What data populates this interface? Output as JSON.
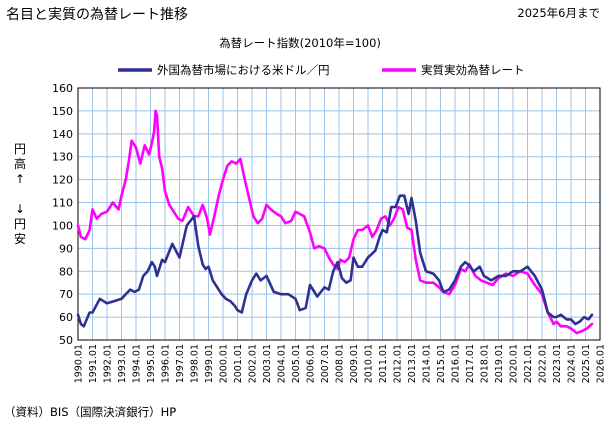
{
  "header": {
    "title": "名目と実質の為替レート推移",
    "date_note": "2025年6月まで"
  },
  "chart_data": {
    "type": "line",
    "title": "為替レート指数(2010年=100)",
    "ylabel_top": "円高↑",
    "ylabel_bottom": "↓円安",
    "ylim": [
      50,
      160
    ],
    "yticks": [
      "50",
      "60",
      "70",
      "80",
      "90",
      "100",
      "110",
      "120",
      "130",
      "140",
      "150",
      "160"
    ],
    "xlim": [
      1990.0,
      2026.0
    ],
    "xticks": [
      "1990.01",
      "1991.01",
      "1992.01",
      "1993.01",
      "1994.01",
      "1995.01",
      "1996.01",
      "1997.01",
      "1998.01",
      "1999.01",
      "2000.01",
      "2001.01",
      "2002.01",
      "2003.01",
      "2004.01",
      "2005.01",
      "2006.01",
      "2007.01",
      "2008.01",
      "2009.01",
      "2010.01",
      "2011.01",
      "2012.01",
      "2013.01",
      "2014.01",
      "2015.01",
      "2016.01",
      "2017.01",
      "2018.01",
      "2019.01",
      "2020.01",
      "2021.01",
      "2022.01",
      "2023.01",
      "2024.01",
      "2025.01",
      "2026.01"
    ],
    "grid": true,
    "legend_position": "top",
    "source": "（資料）BIS（国際決済銀行）HP",
    "colors": {
      "nominal": "#2E3192",
      "real": "#FF00FF",
      "grid": "#9DC3E6"
    },
    "series": [
      {
        "name": "外国為替市場における米ドル／円",
        "key": "nominal",
        "x": [
          1990.0,
          1990.2,
          1990.4,
          1990.6,
          1990.8,
          1991.0,
          1991.5,
          1992.0,
          1992.5,
          1993.0,
          1993.3,
          1993.6,
          1993.9,
          1994.2,
          1994.5,
          1994.8,
          1995.1,
          1995.3,
          1995.45,
          1995.6,
          1995.8,
          1996.0,
          1996.5,
          1997.0,
          1997.5,
          1998.0,
          1998.3,
          1998.6,
          1998.8,
          1999.0,
          1999.3,
          1999.6,
          1999.9,
          2000.2,
          2000.5,
          2000.8,
          2001.0,
          2001.3,
          2001.6,
          2002.0,
          2002.3,
          2002.6,
          2003.0,
          2003.5,
          2004.0,
          2004.5,
          2005.0,
          2005.3,
          2005.7,
          2006.0,
          2006.5,
          2007.0,
          2007.3,
          2007.6,
          2007.9,
          2008.2,
          2008.5,
          2008.8,
          2009.0,
          2009.3,
          2009.6,
          2010.0,
          2010.5,
          2010.8,
          2011.0,
          2011.3,
          2011.6,
          2011.9,
          2012.2,
          2012.5,
          2012.8,
          2013.0,
          2013.3,
          2013.6,
          2014.0,
          2014.5,
          2014.9,
          2015.2,
          2015.6,
          2016.0,
          2016.4,
          2016.7,
          2016.9,
          2017.3,
          2017.7,
          2018.0,
          2018.5,
          2019.0,
          2019.5,
          2020.0,
          2020.5,
          2021.0,
          2021.5,
          2022.0,
          2022.4,
          2022.8,
          2023.0,
          2023.3,
          2023.7,
          2024.0,
          2024.3,
          2024.6,
          2024.9,
          2025.2,
          2025.45
        ],
        "values": [
          61,
          57,
          56,
          59,
          62,
          62,
          68,
          66,
          67,
          68,
          70,
          72,
          71,
          72,
          78,
          80,
          84,
          82,
          78,
          81,
          85,
          84,
          92,
          86,
          100,
          104,
          91,
          83,
          81,
          82,
          76,
          73,
          70,
          68,
          67,
          65,
          63,
          62,
          70,
          76,
          79,
          76,
          78,
          71,
          70,
          70,
          68,
          63,
          64,
          74,
          69,
          73,
          72,
          80,
          84,
          77,
          75,
          76,
          86,
          82,
          82,
          86,
          89,
          95,
          98,
          97,
          108,
          108,
          113,
          113,
          105,
          112,
          102,
          88,
          80,
          79,
          76,
          71,
          72,
          76,
          82,
          84,
          83,
          80,
          82,
          78,
          76,
          78,
          78,
          80,
          80,
          82,
          78,
          72,
          62,
          60,
          60,
          61,
          59,
          59,
          57,
          58,
          60,
          59,
          61
        ]
      },
      {
        "name": "実質実効為替レート",
        "key": "real",
        "x": [
          1990.0,
          1990.2,
          1990.5,
          1990.8,
          1991.0,
          1991.3,
          1991.6,
          1992.0,
          1992.4,
          1992.8,
          1993.0,
          1993.3,
          1993.5,
          1993.7,
          1994.0,
          1994.3,
          1994.6,
          1994.9,
          1995.1,
          1995.25,
          1995.35,
          1995.45,
          1995.6,
          1995.8,
          1996.0,
          1996.3,
          1996.6,
          1996.9,
          1997.2,
          1997.6,
          1998.0,
          1998.3,
          1998.6,
          1998.9,
          1999.1,
          1999.4,
          1999.7,
          2000.0,
          2000.3,
          2000.6,
          2000.9,
          2001.2,
          2001.5,
          2001.8,
          2002.1,
          2002.4,
          2002.7,
          2003.0,
          2003.3,
          2003.7,
          2004.0,
          2004.3,
          2004.7,
          2005.0,
          2005.3,
          2005.6,
          2006.0,
          2006.3,
          2006.6,
          2007.0,
          2007.3,
          2007.6,
          2007.9,
          2008.1,
          2008.4,
          2008.7,
          2009.0,
          2009.3,
          2009.6,
          2010.0,
          2010.3,
          2010.6,
          2010.9,
          2011.2,
          2011.5,
          2011.8,
          2012.1,
          2012.4,
          2012.7,
          2013.0,
          2013.3,
          2013.6,
          2014.0,
          2014.5,
          2014.9,
          2015.2,
          2015.6,
          2016.0,
          2016.4,
          2016.7,
          2017.0,
          2017.4,
          2017.8,
          2018.2,
          2018.6,
          2019.0,
          2019.5,
          2020.0,
          2020.5,
          2021.0,
          2021.5,
          2022.0,
          2022.4,
          2022.8,
          2023.0,
          2023.3,
          2023.7,
          2024.0,
          2024.4,
          2024.8,
          2025.1,
          2025.45
        ],
        "values": [
          100,
          95,
          94,
          98,
          107,
          103,
          105,
          106,
          110,
          107,
          113,
          120,
          128,
          137,
          134,
          127,
          135,
          131,
          136,
          141,
          150,
          148,
          130,
          125,
          115,
          109,
          106,
          103,
          102,
          108,
          104,
          104,
          109,
          103,
          96,
          104,
          113,
          120,
          126,
          128,
          127,
          129,
          120,
          112,
          104,
          101,
          103,
          109,
          107,
          105,
          104,
          101,
          102,
          106,
          105,
          104,
          97,
          90,
          91,
          90,
          86,
          83,
          81,
          85,
          84,
          86,
          94,
          98,
          98,
          100,
          95,
          98,
          103,
          104,
          100,
          103,
          108,
          107,
          99,
          98,
          85,
          76,
          75,
          75,
          73,
          71,
          70,
          74,
          81,
          80,
          83,
          78,
          76,
          75,
          74,
          77,
          79,
          78,
          80,
          79,
          74,
          70,
          62,
          57,
          58,
          56,
          56,
          55,
          53,
          54,
          55,
          57
        ]
      }
    ]
  }
}
